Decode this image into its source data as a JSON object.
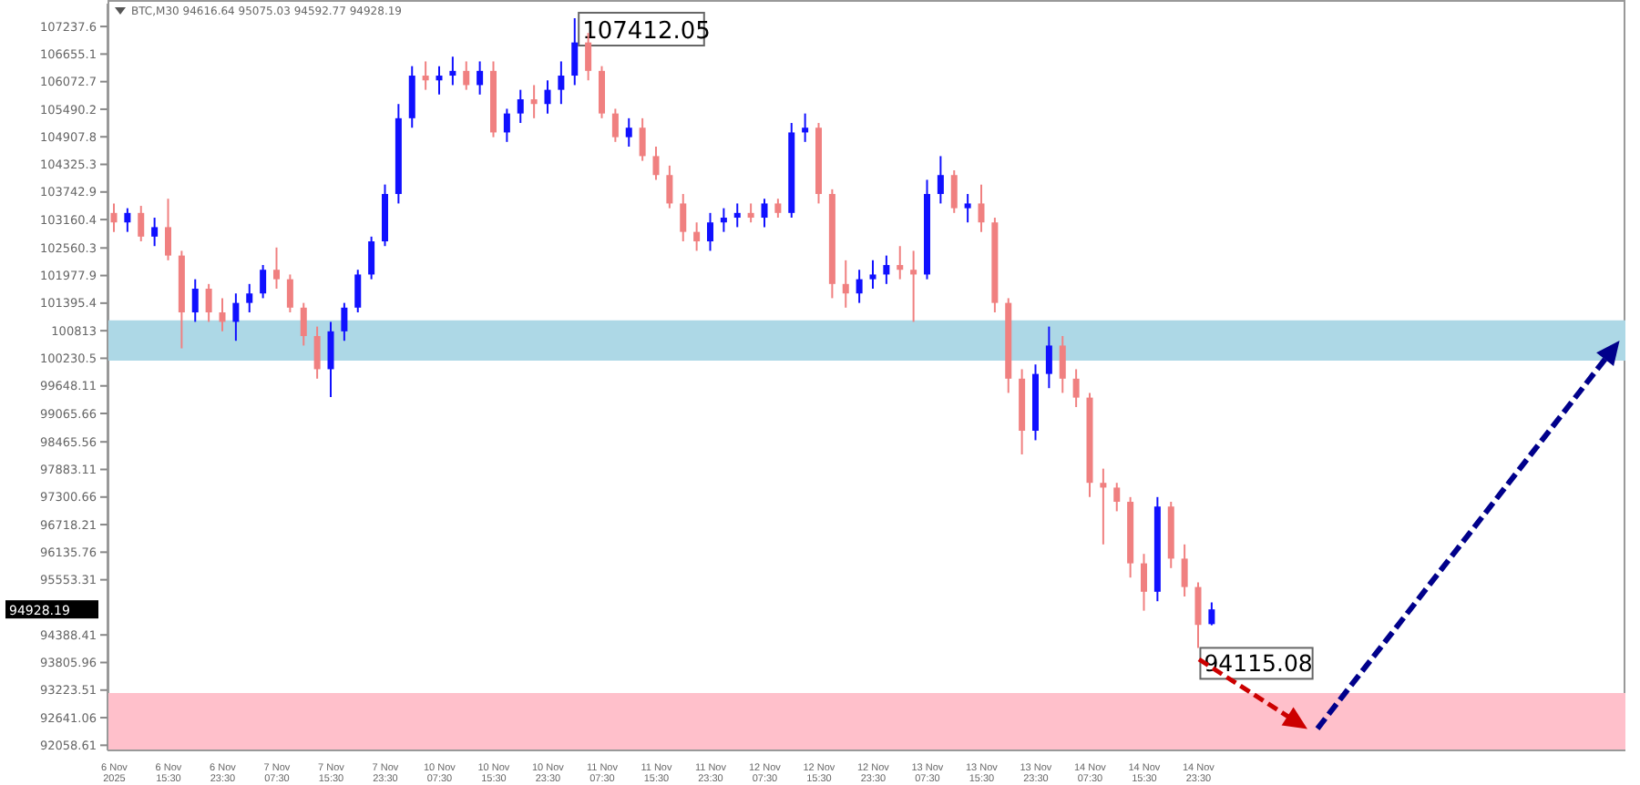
{
  "chart_data": {
    "type": "candlestick",
    "title": "BTC,M30 94616.64 95075.03 94592.77 94928.19",
    "categories": [
      "6 Nov 2025",
      null,
      null,
      null,
      "6 Nov 15:30",
      null,
      null,
      null,
      "6 Nov 23:30",
      null,
      null,
      null,
      "7 Nov 07:30",
      null,
      null,
      null,
      "7 Nov 15:30",
      null,
      null,
      null,
      "7 Nov 23:30",
      null,
      null,
      null,
      "10 Nov 07:30",
      null,
      null,
      null,
      "10 Nov 15:30",
      null,
      null,
      null,
      "10 Nov 23:30",
      null,
      null,
      null,
      "11 Nov 07:30",
      null,
      null,
      null,
      "11 Nov 15:30",
      null,
      null,
      null,
      "11 Nov 23:30",
      null,
      null,
      null,
      "12 Nov 07:30",
      null,
      null,
      null,
      "12 Nov 15:30",
      null,
      null,
      null,
      "12 Nov 23:30",
      null,
      null,
      null,
      "13 Nov 07:30",
      null,
      null,
      null,
      "13 Nov 15:30",
      null,
      null,
      null,
      "13 Nov 23:30",
      null,
      null,
      null,
      "14 Nov 07:30",
      null,
      null,
      null,
      "14 Nov 15:30",
      null,
      null,
      null,
      "14 Nov 23:30",
      null
    ],
    "series": [
      {
        "ohlc": [
          [
            103300,
            103500,
            102900,
            103100
          ],
          [
            103100,
            103400,
            102900,
            103300
          ],
          [
            103300,
            103450,
            102700,
            102800
          ],
          [
            102800,
            103200,
            102600,
            103000
          ],
          [
            103000,
            103600,
            102300,
            102400
          ],
          [
            102400,
            102500,
            100440,
            101200
          ],
          [
            101200,
            101900,
            101000,
            101700
          ],
          [
            101700,
            101800,
            101000,
            101200
          ],
          [
            101200,
            101500,
            100800,
            101000
          ],
          [
            101000,
            101600,
            100600,
            101400
          ],
          [
            101400,
            101800,
            101200,
            101600
          ],
          [
            101600,
            102200,
            101500,
            102100
          ],
          [
            102100,
            102570,
            101700,
            101900
          ],
          [
            101900,
            102000,
            101200,
            101300
          ],
          [
            101300,
            101400,
            100500,
            100700
          ],
          [
            100700,
            100900,
            99800,
            100000
          ],
          [
            100000,
            101000,
            99410,
            100800
          ],
          [
            100800,
            101400,
            100600,
            101300
          ],
          [
            101300,
            102100,
            101200,
            102000
          ],
          [
            102000,
            102800,
            101900,
            102700
          ],
          [
            102700,
            103900,
            102600,
            103700
          ],
          [
            103700,
            105600,
            103500,
            105300
          ],
          [
            105300,
            106400,
            105100,
            106200
          ],
          [
            106200,
            106500,
            105900,
            106100
          ],
          [
            106100,
            106400,
            105800,
            106200
          ],
          [
            106200,
            106600,
            106000,
            106300
          ],
          [
            106300,
            106500,
            105900,
            106000
          ],
          [
            106000,
            106500,
            105800,
            106300
          ],
          [
            106300,
            106500,
            104900,
            105000
          ],
          [
            105000,
            105500,
            104800,
            105400
          ],
          [
            105400,
            105900,
            105200,
            105700
          ],
          [
            105700,
            106000,
            105300,
            105600
          ],
          [
            105600,
            106100,
            105400,
            105900
          ],
          [
            105900,
            106500,
            105600,
            106200
          ],
          [
            106200,
            107412.05,
            106000,
            106900
          ],
          [
            106900,
            107100,
            106100,
            106300
          ],
          [
            106300,
            106400,
            105300,
            105400
          ],
          [
            105400,
            105500,
            104800,
            104900
          ],
          [
            104900,
            105300,
            104700,
            105100
          ],
          [
            105100,
            105300,
            104400,
            104500
          ],
          [
            104500,
            104700,
            104000,
            104100
          ],
          [
            104100,
            104300,
            103400,
            103500
          ],
          [
            103500,
            103700,
            102700,
            102900
          ],
          [
            102900,
            103100,
            102500,
            102700
          ],
          [
            102700,
            103300,
            102500,
            103100
          ],
          [
            103100,
            103400,
            102900,
            103200
          ],
          [
            103200,
            103500,
            103000,
            103300
          ],
          [
            103300,
            103500,
            103100,
            103200
          ],
          [
            103200,
            103600,
            103000,
            103500
          ],
          [
            103500,
            103600,
            103200,
            103300
          ],
          [
            103300,
            105200,
            103200,
            105000
          ],
          [
            105000,
            105400,
            104800,
            105100
          ],
          [
            105100,
            105200,
            103500,
            103700
          ],
          [
            103700,
            103800,
            101500,
            101800
          ],
          [
            101800,
            102300,
            101300,
            101600
          ],
          [
            101600,
            102100,
            101400,
            101900
          ],
          [
            101900,
            102300,
            101700,
            102000
          ],
          [
            102000,
            102400,
            101800,
            102200
          ],
          [
            102200,
            102600,
            101900,
            102100
          ],
          [
            102100,
            102500,
            101000,
            102000
          ],
          [
            102000,
            104000,
            101900,
            103700
          ],
          [
            103700,
            104500,
            103500,
            104100
          ],
          [
            104100,
            104200,
            103300,
            103400
          ],
          [
            103400,
            103700,
            103100,
            103500
          ],
          [
            103500,
            103900,
            102900,
            103100
          ],
          [
            103100,
            103200,
            101200,
            101400
          ],
          [
            101400,
            101500,
            99500,
            99800
          ],
          [
            99800,
            100000,
            98200,
            98700
          ],
          [
            98700,
            100100,
            98500,
            99900
          ],
          [
            99900,
            100900,
            99600,
            100500
          ],
          [
            100500,
            100700,
            99500,
            99800
          ],
          [
            99800,
            100000,
            99200,
            99400
          ],
          [
            99400,
            99500,
            97300,
            97600
          ],
          [
            97600,
            97900,
            96300,
            97500
          ],
          [
            97500,
            97600,
            97000,
            97200
          ],
          [
            97200,
            97300,
            95600,
            95900
          ],
          [
            95900,
            96100,
            94900,
            95300
          ],
          [
            95300,
            97300,
            95100,
            97100
          ],
          [
            97100,
            97200,
            95800,
            96000
          ],
          [
            96000,
            96300,
            95200,
            95400
          ],
          [
            95400,
            95500,
            94115.08,
            94600
          ],
          [
            94616.64,
            95075.03,
            94592.77,
            94928.19
          ]
        ],
        "colors": [
          "#f08080",
          "#1010ff",
          "#f08080",
          "#1010ff",
          "#f08080",
          "#f08080",
          "#1010ff",
          "#f08080",
          "#f08080",
          "#1010ff",
          "#1010ff",
          "#1010ff",
          "#f08080",
          "#f08080",
          "#f08080",
          "#f08080",
          "#1010ff",
          "#1010ff",
          "#1010ff",
          "#1010ff",
          "#1010ff",
          "#1010ff",
          "#1010ff",
          "#f08080",
          "#1010ff",
          "#1010ff",
          "#f08080",
          "#1010ff",
          "#f08080",
          "#1010ff",
          "#1010ff",
          "#f08080",
          "#1010ff",
          "#1010ff",
          "#1010ff",
          "#f08080",
          "#f08080",
          "#f08080",
          "#1010ff",
          "#f08080",
          "#f08080",
          "#f08080",
          "#f08080",
          "#f08080",
          "#1010ff",
          "#1010ff",
          "#1010ff",
          "#f08080",
          "#1010ff",
          "#f08080",
          "#1010ff",
          "#1010ff",
          "#f08080",
          "#f08080",
          "#f08080",
          "#1010ff",
          "#1010ff",
          "#1010ff",
          "#f08080",
          "#f08080",
          "#1010ff",
          "#1010ff",
          "#f08080",
          "#1010ff",
          "#f08080",
          "#f08080",
          "#f08080",
          "#f08080",
          "#1010ff",
          "#1010ff",
          "#f08080",
          "#f08080",
          "#f08080",
          "#f08080",
          "#f08080",
          "#f08080",
          "#f08080",
          "#1010ff",
          "#f08080",
          "#f08080",
          "#f08080",
          "#1010ff"
        ]
      }
    ],
    "ylim": [
      91950,
      107720
    ],
    "yticks": [
      92058.61,
      92641.06,
      93223.51,
      93805.96,
      94388.41,
      95553.31,
      96135.76,
      96718.21,
      97300.66,
      97883.11,
      98465.56,
      99065.66,
      99648.11,
      100230.5,
      100813.0,
      101395.4,
      101977.9,
      102560.3,
      103160.4,
      103742.9,
      104325.3,
      104907.8,
      105490.2,
      106072.7,
      106655.1,
      107237.6
    ],
    "bands": [
      {
        "axis": "y",
        "from": 100180,
        "to": 101030,
        "color": "#add8e6"
      },
      {
        "axis": "y",
        "from": 91950,
        "to": 93160,
        "color": "#ffc0cb"
      }
    ],
    "annotations": [
      "107412.05",
      "94115.08",
      "94928.19"
    ],
    "grid": false,
    "legend": false
  }
}
